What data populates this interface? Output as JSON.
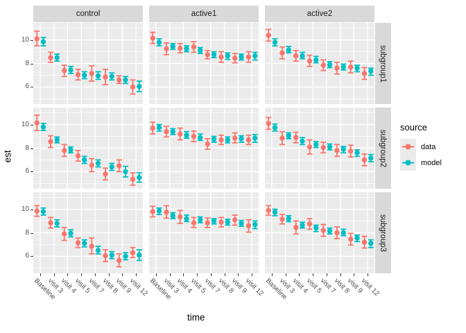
{
  "chart_data": {
    "type": "scatter",
    "title": "",
    "xlabel": "time",
    "ylabel": "est",
    "x_categories": [
      "Baseline",
      "visit 3",
      "visit 4",
      "visit 5",
      "visit 7",
      "visit 8",
      "visit 9",
      "visit 12"
    ],
    "col_facets": [
      "control",
      "active1",
      "active2"
    ],
    "row_facets": [
      "subgroup1",
      "subgroup2",
      "subgroup3"
    ],
    "y_ticks": [
      6,
      8,
      10
    ],
    "y_minor_ticks": [
      5,
      7,
      9,
      11
    ],
    "ylim": [
      4.55,
      11.45
    ],
    "grid": true,
    "error_bars": true,
    "panel_bg": "#ebebeb",
    "strip_bg": "#d9d9d9",
    "gridline_color": "#ffffff",
    "tick_text_color": "#4d4d4d",
    "legend": {
      "title": "source",
      "position": "right",
      "entries": [
        {
          "label": "data",
          "color": "#F8766D"
        },
        {
          "label": "model",
          "color": "#00BFC4"
        }
      ]
    },
    "facets": [
      {
        "row": "subgroup1",
        "col": "control",
        "series": [
          {
            "name": "data",
            "est": [
              10.1,
              8.5,
              7.4,
              7.05,
              7.15,
              6.85,
              6.6,
              6.0
            ],
            "lo": [
              9.5,
              8.1,
              6.9,
              6.6,
              6.5,
              6.2,
              6.3,
              5.4
            ],
            "hi": [
              10.75,
              8.95,
              7.85,
              7.5,
              7.8,
              7.5,
              6.95,
              6.6
            ]
          },
          {
            "name": "model",
            "est": [
              9.85,
              8.5,
              7.45,
              7.0,
              6.95,
              6.9,
              6.6,
              6.05
            ],
            "lo": [
              9.5,
              8.2,
              7.15,
              6.7,
              6.65,
              6.6,
              6.3,
              5.6
            ],
            "hi": [
              10.2,
              8.8,
              7.75,
              7.3,
              7.3,
              7.2,
              6.9,
              6.5
            ]
          }
        ]
      },
      {
        "row": "subgroup1",
        "col": "active1",
        "series": [
          {
            "name": "data",
            "est": [
              10.15,
              9.25,
              9.3,
              9.4,
              8.75,
              8.55,
              8.45,
              8.55
            ],
            "lo": [
              9.7,
              8.75,
              8.9,
              8.95,
              8.4,
              8.1,
              8.05,
              8.1
            ],
            "hi": [
              10.65,
              9.75,
              9.7,
              9.85,
              9.1,
              9.0,
              8.85,
              9.0
            ]
          },
          {
            "name": "model",
            "est": [
              9.8,
              9.45,
              9.25,
              9.1,
              8.75,
              8.65,
              8.55,
              8.65
            ],
            "lo": [
              9.5,
              9.2,
              9.0,
              8.85,
              8.5,
              8.35,
              8.3,
              8.3
            ],
            "hi": [
              10.1,
              9.7,
              9.5,
              9.35,
              9.0,
              8.9,
              8.8,
              8.95
            ]
          }
        ]
      },
      {
        "row": "subgroup1",
        "col": "active2",
        "series": [
          {
            "name": "data",
            "est": [
              10.4,
              8.9,
              8.65,
              8.2,
              7.85,
              7.6,
              7.7,
              7.15
            ],
            "lo": [
              9.9,
              8.4,
              8.2,
              7.75,
              7.4,
              7.1,
              7.2,
              6.65
            ],
            "hi": [
              10.9,
              9.4,
              9.1,
              8.7,
              8.3,
              8.1,
              8.2,
              7.65
            ]
          },
          {
            "name": "model",
            "est": [
              9.8,
              9.15,
              8.65,
              8.3,
              7.9,
              7.7,
              7.6,
              7.35
            ],
            "lo": [
              9.5,
              8.9,
              8.4,
              8.05,
              7.65,
              7.45,
              7.3,
              7.0
            ],
            "hi": [
              10.1,
              9.45,
              8.95,
              8.6,
              8.15,
              7.95,
              7.85,
              7.6
            ]
          }
        ]
      },
      {
        "row": "subgroup2",
        "col": "control",
        "series": [
          {
            "name": "data",
            "est": [
              10.15,
              8.55,
              7.8,
              7.35,
              6.55,
              5.8,
              6.5,
              5.35
            ],
            "lo": [
              9.5,
              8.05,
              7.3,
              6.9,
              6.0,
              5.3,
              6.0,
              4.85
            ],
            "hi": [
              10.8,
              9.05,
              8.3,
              7.8,
              7.1,
              6.3,
              7.0,
              5.9
            ]
          },
          {
            "name": "model",
            "est": [
              9.8,
              8.7,
              7.85,
              7.0,
              6.7,
              6.4,
              6.0,
              5.5
            ],
            "lo": [
              9.5,
              8.45,
              7.6,
              6.7,
              6.4,
              6.1,
              5.55,
              5.1
            ],
            "hi": [
              10.1,
              8.95,
              8.1,
              7.3,
              7.0,
              6.7,
              6.45,
              5.9
            ]
          }
        ]
      },
      {
        "row": "subgroup2",
        "col": "active1",
        "series": [
          {
            "name": "data",
            "est": [
              9.7,
              9.4,
              9.2,
              9.0,
              8.35,
              8.7,
              8.85,
              8.7
            ],
            "lo": [
              9.2,
              8.95,
              8.7,
              8.55,
              7.9,
              8.3,
              8.45,
              8.3
            ],
            "hi": [
              10.2,
              9.85,
              9.7,
              9.45,
              8.8,
              9.1,
              9.3,
              9.1
            ]
          },
          {
            "name": "model",
            "est": [
              9.75,
              9.4,
              9.1,
              8.9,
              8.75,
              8.7,
              8.8,
              8.85
            ],
            "lo": [
              9.45,
              9.15,
              8.85,
              8.65,
              8.5,
              8.45,
              8.5,
              8.5
            ],
            "hi": [
              10.0,
              9.65,
              9.4,
              9.2,
              9.0,
              8.95,
              9.05,
              9.15
            ]
          }
        ]
      },
      {
        "row": "subgroup2",
        "col": "active2",
        "series": [
          {
            "name": "data",
            "est": [
              10.1,
              8.85,
              8.9,
              8.1,
              8.05,
              7.8,
              7.75,
              7.0
            ],
            "lo": [
              9.6,
              8.3,
              8.45,
              7.5,
              7.6,
              7.3,
              7.25,
              6.5
            ],
            "hi": [
              10.6,
              9.4,
              9.35,
              8.7,
              8.5,
              8.3,
              8.25,
              7.5
            ]
          },
          {
            "name": "model",
            "est": [
              9.75,
              9.05,
              8.6,
              8.3,
              8.1,
              7.9,
              7.6,
              7.15
            ],
            "lo": [
              9.45,
              8.8,
              8.3,
              8.05,
              7.85,
              7.6,
              7.3,
              6.85
            ],
            "hi": [
              10.05,
              9.3,
              8.9,
              8.55,
              8.35,
              8.15,
              7.85,
              7.45
            ]
          }
        ]
      },
      {
        "row": "subgroup3",
        "col": "control",
        "series": [
          {
            "name": "data",
            "est": [
              9.85,
              8.85,
              7.9,
              7.15,
              6.85,
              6.05,
              5.65,
              6.3
            ],
            "lo": [
              9.4,
              8.4,
              7.35,
              6.75,
              6.2,
              5.55,
              5.1,
              5.9
            ],
            "hi": [
              10.3,
              9.3,
              8.45,
              7.55,
              7.55,
              6.55,
              6.2,
              6.75
            ]
          },
          {
            "name": "model",
            "est": [
              9.8,
              8.8,
              7.95,
              7.1,
              6.5,
              6.1,
              6.0,
              6.1
            ],
            "lo": [
              9.5,
              8.5,
              7.65,
              6.8,
              6.2,
              5.8,
              5.7,
              5.65
            ],
            "hi": [
              10.1,
              9.1,
              8.25,
              7.4,
              6.85,
              6.4,
              6.3,
              6.55
            ]
          }
        ]
      },
      {
        "row": "subgroup3",
        "col": "active1",
        "series": [
          {
            "name": "data",
            "est": [
              9.8,
              9.75,
              9.35,
              8.85,
              8.85,
              8.9,
              9.1,
              8.6
            ],
            "lo": [
              9.35,
              9.25,
              8.8,
              8.45,
              8.45,
              8.5,
              8.65,
              8.05
            ],
            "hi": [
              10.25,
              10.3,
              9.9,
              9.3,
              9.25,
              9.3,
              9.5,
              9.1
            ]
          },
          {
            "name": "model",
            "est": [
              9.85,
              9.45,
              9.2,
              9.1,
              9.0,
              8.9,
              8.8,
              8.7
            ],
            "lo": [
              9.55,
              9.2,
              8.95,
              8.85,
              8.75,
              8.65,
              8.55,
              8.35
            ],
            "hi": [
              10.1,
              9.7,
              9.5,
              9.35,
              9.2,
              9.15,
              9.05,
              9.0
            ]
          }
        ]
      },
      {
        "row": "subgroup3",
        "col": "active2",
        "series": [
          {
            "name": "data",
            "est": [
              9.9,
              9.15,
              8.45,
              8.75,
              8.2,
              8.0,
              7.45,
              7.2
            ],
            "lo": [
              9.5,
              8.75,
              7.9,
              8.3,
              7.7,
              7.5,
              6.95,
              6.7
            ],
            "hi": [
              10.3,
              9.55,
              9.0,
              9.2,
              8.7,
              8.5,
              7.95,
              7.7
            ]
          },
          {
            "name": "model",
            "est": [
              9.75,
              9.2,
              8.65,
              8.4,
              8.15,
              8.0,
              7.55,
              7.1
            ],
            "lo": [
              9.45,
              8.95,
              8.4,
              8.1,
              7.9,
              7.75,
              7.25,
              6.75
            ],
            "hi": [
              10.0,
              9.45,
              8.9,
              8.65,
              8.4,
              8.3,
              7.8,
              7.4
            ]
          }
        ]
      }
    ]
  }
}
